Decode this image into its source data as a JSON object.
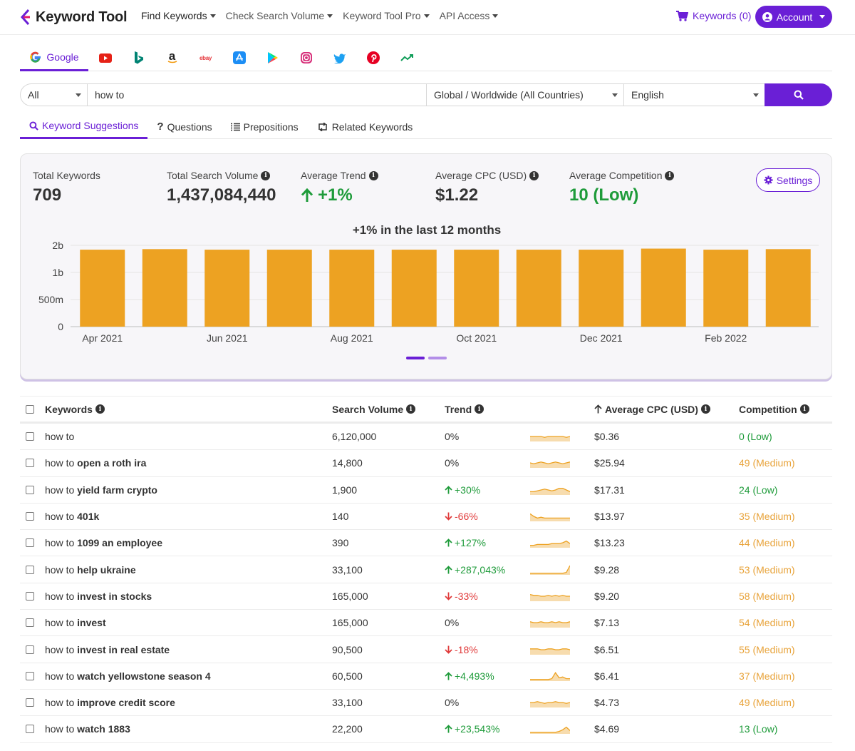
{
  "nav": {
    "logo": "Keyword Tool",
    "menu": [
      "Find Keywords",
      "Check Search Volume",
      "Keyword Tool Pro",
      "API Access"
    ],
    "cart": "Keywords (0)",
    "account": "Account"
  },
  "platforms": {
    "active_label": "Google",
    "icons": [
      "youtube-icon",
      "bing-icon",
      "amazon-icon",
      "ebay-icon",
      "app-store-icon",
      "play-store-icon",
      "instagram-icon",
      "twitter-icon",
      "pinterest-icon",
      "trends-icon"
    ],
    "ebay_text": "ebay",
    "amazon_text": "a"
  },
  "search": {
    "type": "All",
    "query": "how to",
    "location": "Global / Worldwide (All Countries)",
    "language": "English"
  },
  "subtabs": [
    "Keyword Suggestions",
    "Questions",
    "Prepositions",
    "Related Keywords"
  ],
  "stats": {
    "total_keywords_label": "Total Keywords",
    "total_keywords": "709",
    "total_volume_label": "Total Search Volume",
    "total_volume": "1,437,084,440",
    "avg_trend_label": "Average Trend",
    "avg_trend": "+1%",
    "avg_cpc_label": "Average CPC (USD)",
    "avg_cpc": "$1.22",
    "avg_comp_label": "Average Competition",
    "avg_comp": "10 (Low)",
    "settings": "Settings"
  },
  "chart_data": {
    "type": "bar",
    "title": "+1% in the last 12 months",
    "categories": [
      "Apr 2021",
      "May 2021",
      "Jun 2021",
      "Jul 2021",
      "Aug 2021",
      "Sep 2021",
      "Oct 2021",
      "Nov 2021",
      "Dec 2021",
      "Jan 2022",
      "Feb 2022",
      "Mar 2022"
    ],
    "tick_labels": [
      "Apr 2021",
      "Jun 2021",
      "Aug 2021",
      "Oct 2021",
      "Dec 2021",
      "Feb 2022"
    ],
    "values": [
      1.42,
      1.43,
      1.42,
      1.42,
      1.42,
      1.42,
      1.42,
      1.42,
      1.42,
      1.44,
      1.42,
      1.43
    ],
    "unit": "billion",
    "yticks": [
      "0",
      "500m",
      "1b",
      "2b"
    ],
    "ylim": [
      0,
      1.5
    ],
    "color": "#eda222",
    "grid": true
  },
  "table": {
    "headers": {
      "keywords": "Keywords",
      "volume": "Search Volume",
      "trend": "Trend",
      "cpc": "Average CPC (USD)",
      "competition": "Competition"
    },
    "rows": [
      {
        "prefix": "how to",
        "rest": "",
        "volume": "6,120,000",
        "trend": "0%",
        "dir": "flat",
        "spark": [
          5,
          5,
          5,
          5,
          4,
          5,
          5,
          5,
          5,
          5,
          4,
          5
        ],
        "cpc": "$0.36",
        "comp": "0 (Low)",
        "level": "low"
      },
      {
        "prefix": "how to",
        "rest": "open a roth ira",
        "volume": "14,800",
        "trend": "0%",
        "dir": "flat",
        "spark": [
          5,
          4,
          5,
          6,
          5,
          4,
          5,
          6,
          5,
          4,
          5,
          6
        ],
        "cpc": "$25.94",
        "comp": "49 (Medium)",
        "level": "medium"
      },
      {
        "prefix": "how to",
        "rest": "yield farm crypto",
        "volume": "1,900",
        "trend": "+30%",
        "dir": "up",
        "spark": [
          3,
          3,
          4,
          5,
          6,
          5,
          4,
          5,
          7,
          7,
          5,
          3
        ],
        "cpc": "$17.31",
        "comp": "24 (Low)",
        "level": "low"
      },
      {
        "prefix": "how to",
        "rest": "401k",
        "volume": "140",
        "trend": "-66%",
        "dir": "down",
        "spark": [
          8,
          5,
          3,
          4,
          3,
          3,
          3,
          3,
          3,
          3,
          3,
          3
        ],
        "cpc": "$13.97",
        "comp": "35 (Medium)",
        "level": "medium"
      },
      {
        "prefix": "how to",
        "rest": "1099 an employee",
        "volume": "390",
        "trend": "+127%",
        "dir": "up",
        "spark": [
          2,
          2,
          3,
          3,
          3,
          3,
          4,
          4,
          4,
          5,
          7,
          4
        ],
        "cpc": "$13.23",
        "comp": "44 (Medium)",
        "level": "medium"
      },
      {
        "prefix": "how to",
        "rest": "help ukraine",
        "volume": "33,100",
        "trend": "+287,043%",
        "dir": "up",
        "spark": [
          1,
          1,
          1,
          1,
          1,
          1,
          1,
          1,
          1,
          1,
          2,
          10
        ],
        "cpc": "$9.28",
        "comp": "53 (Medium)",
        "level": "medium"
      },
      {
        "prefix": "how to",
        "rest": "invest in stocks",
        "volume": "165,000",
        "trend": "-33%",
        "dir": "down",
        "spark": [
          7,
          6,
          6,
          5,
          5,
          6,
          5,
          6,
          5,
          6,
          5,
          5
        ],
        "cpc": "$9.20",
        "comp": "58 (Medium)",
        "level": "medium"
      },
      {
        "prefix": "how to",
        "rest": "invest",
        "volume": "165,000",
        "trend": "0%",
        "dir": "flat",
        "spark": [
          6,
          5,
          5,
          6,
          5,
          5,
          6,
          5,
          6,
          5,
          5,
          6
        ],
        "cpc": "$7.13",
        "comp": "54 (Medium)",
        "level": "medium"
      },
      {
        "prefix": "how to",
        "rest": "invest in real estate",
        "volume": "90,500",
        "trend": "-18%",
        "dir": "down",
        "spark": [
          6,
          6,
          6,
          5,
          5,
          6,
          6,
          5,
          5,
          6,
          6,
          5
        ],
        "cpc": "$6.51",
        "comp": "55 (Medium)",
        "level": "medium"
      },
      {
        "prefix": "how to",
        "rest": "watch yellowstone season 4",
        "volume": "60,500",
        "trend": "+4,493%",
        "dir": "up",
        "spark": [
          1,
          1,
          1,
          1,
          1,
          1,
          2,
          9,
          3,
          4,
          2,
          2
        ],
        "cpc": "$6.41",
        "comp": "37 (Medium)",
        "level": "medium"
      },
      {
        "prefix": "how to",
        "rest": "improve credit score",
        "volume": "33,100",
        "trend": "0%",
        "dir": "flat",
        "spark": [
          5,
          5,
          6,
          5,
          4,
          5,
          5,
          6,
          5,
          5,
          4,
          5
        ],
        "cpc": "$4.73",
        "comp": "49 (Medium)",
        "level": "medium"
      },
      {
        "prefix": "how to",
        "rest": "watch 1883",
        "volume": "22,200",
        "trend": "+23,543%",
        "dir": "up",
        "spark": [
          1,
          1,
          1,
          1,
          1,
          1,
          1,
          1,
          2,
          4,
          7,
          3
        ],
        "cpc": "$4.69",
        "comp": "13 (Low)",
        "level": "low"
      }
    ]
  },
  "colors": {
    "brand": "#6a1fd6",
    "bar": "#eda222",
    "up": "#1e9b3a",
    "down": "#e03a3a",
    "medium": "#e8a33a"
  }
}
